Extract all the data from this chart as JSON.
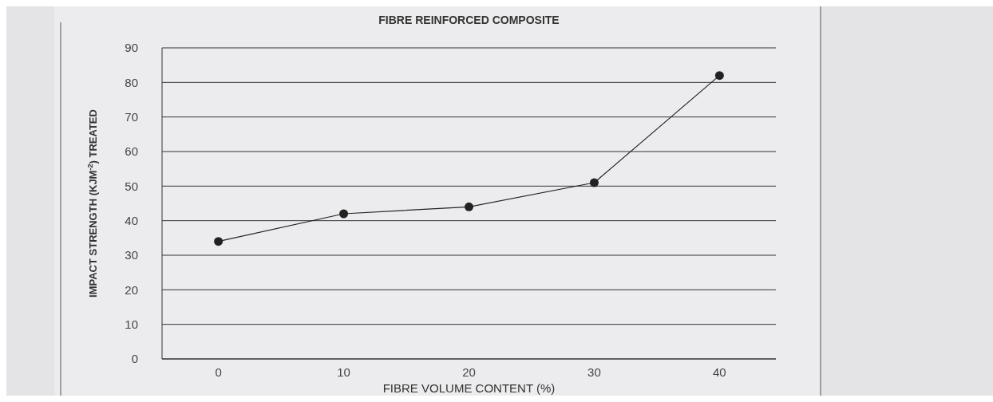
{
  "chart_data": {
    "type": "line",
    "title": "FIBRE REINFORCED COMPOSITE",
    "xlabel": "FIBRE VOLUME CONTENT (%)",
    "ylabel": "IMPACT STRENGTH (KJM$^{-2}$) TREATED",
    "categories": [
      "0",
      "10",
      "20",
      "30",
      "40"
    ],
    "series": [
      {
        "color": "#222222",
        "values": [
          34,
          42,
          44,
          51,
          82
        ]
      }
    ],
    "ylim": [
      0,
      90
    ],
    "yticks": [
      0,
      10,
      20,
      30,
      40,
      50,
      60,
      70,
      80,
      90
    ],
    "grid": "y",
    "marker": "circle",
    "line_style": "solid"
  }
}
